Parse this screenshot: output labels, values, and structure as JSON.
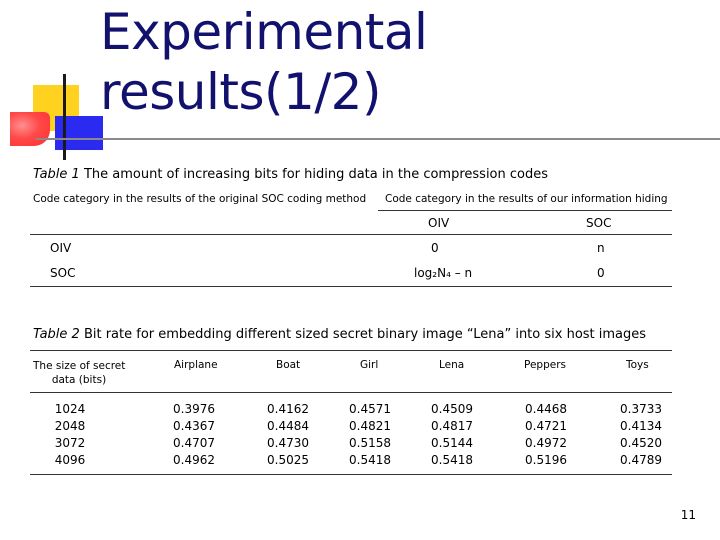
{
  "slide": {
    "title_line1": "Experimental",
    "title_line2": "results(1/2)",
    "page_number": "11"
  },
  "table1": {
    "label": "Table 1",
    "caption": "The amount of increasing bits for hiding data in the compression codes",
    "header_left": "Code category in the results of the original SOC coding method",
    "header_right": "Code category in the results of our information hiding",
    "subheaders": [
      "OIV",
      "SOC"
    ],
    "rows": [
      {
        "label": "OIV",
        "values": [
          "0",
          "n"
        ]
      },
      {
        "label": "SOC",
        "values": [
          "log₂N₄ – n",
          "0"
        ]
      }
    ]
  },
  "table2": {
    "label": "Table 2",
    "caption": "Bit rate for embedding different sized secret binary image “Lena” into six host images",
    "header_first_line1": "The size of secret",
    "header_first_line2": "data (bits)",
    "columns": [
      "Airplane",
      "Boat",
      "Girl",
      "Lena",
      "Peppers",
      "Toys"
    ],
    "sizes": [
      "1024",
      "2048",
      "3072",
      "4096"
    ],
    "data": [
      [
        "0.3976",
        "0.4367",
        "0.4707",
        "0.4962"
      ],
      [
        "0.4162",
        "0.4484",
        "0.4730",
        "0.5025"
      ],
      [
        "0.4571",
        "0.4821",
        "0.5158",
        "0.5418"
      ],
      [
        "0.4509",
        "0.4817",
        "0.5144",
        "0.5418"
      ],
      [
        "0.4468",
        "0.4721",
        "0.4972",
        "0.5196"
      ],
      [
        "0.3733",
        "0.4134",
        "0.4520",
        "0.4789"
      ]
    ]
  }
}
